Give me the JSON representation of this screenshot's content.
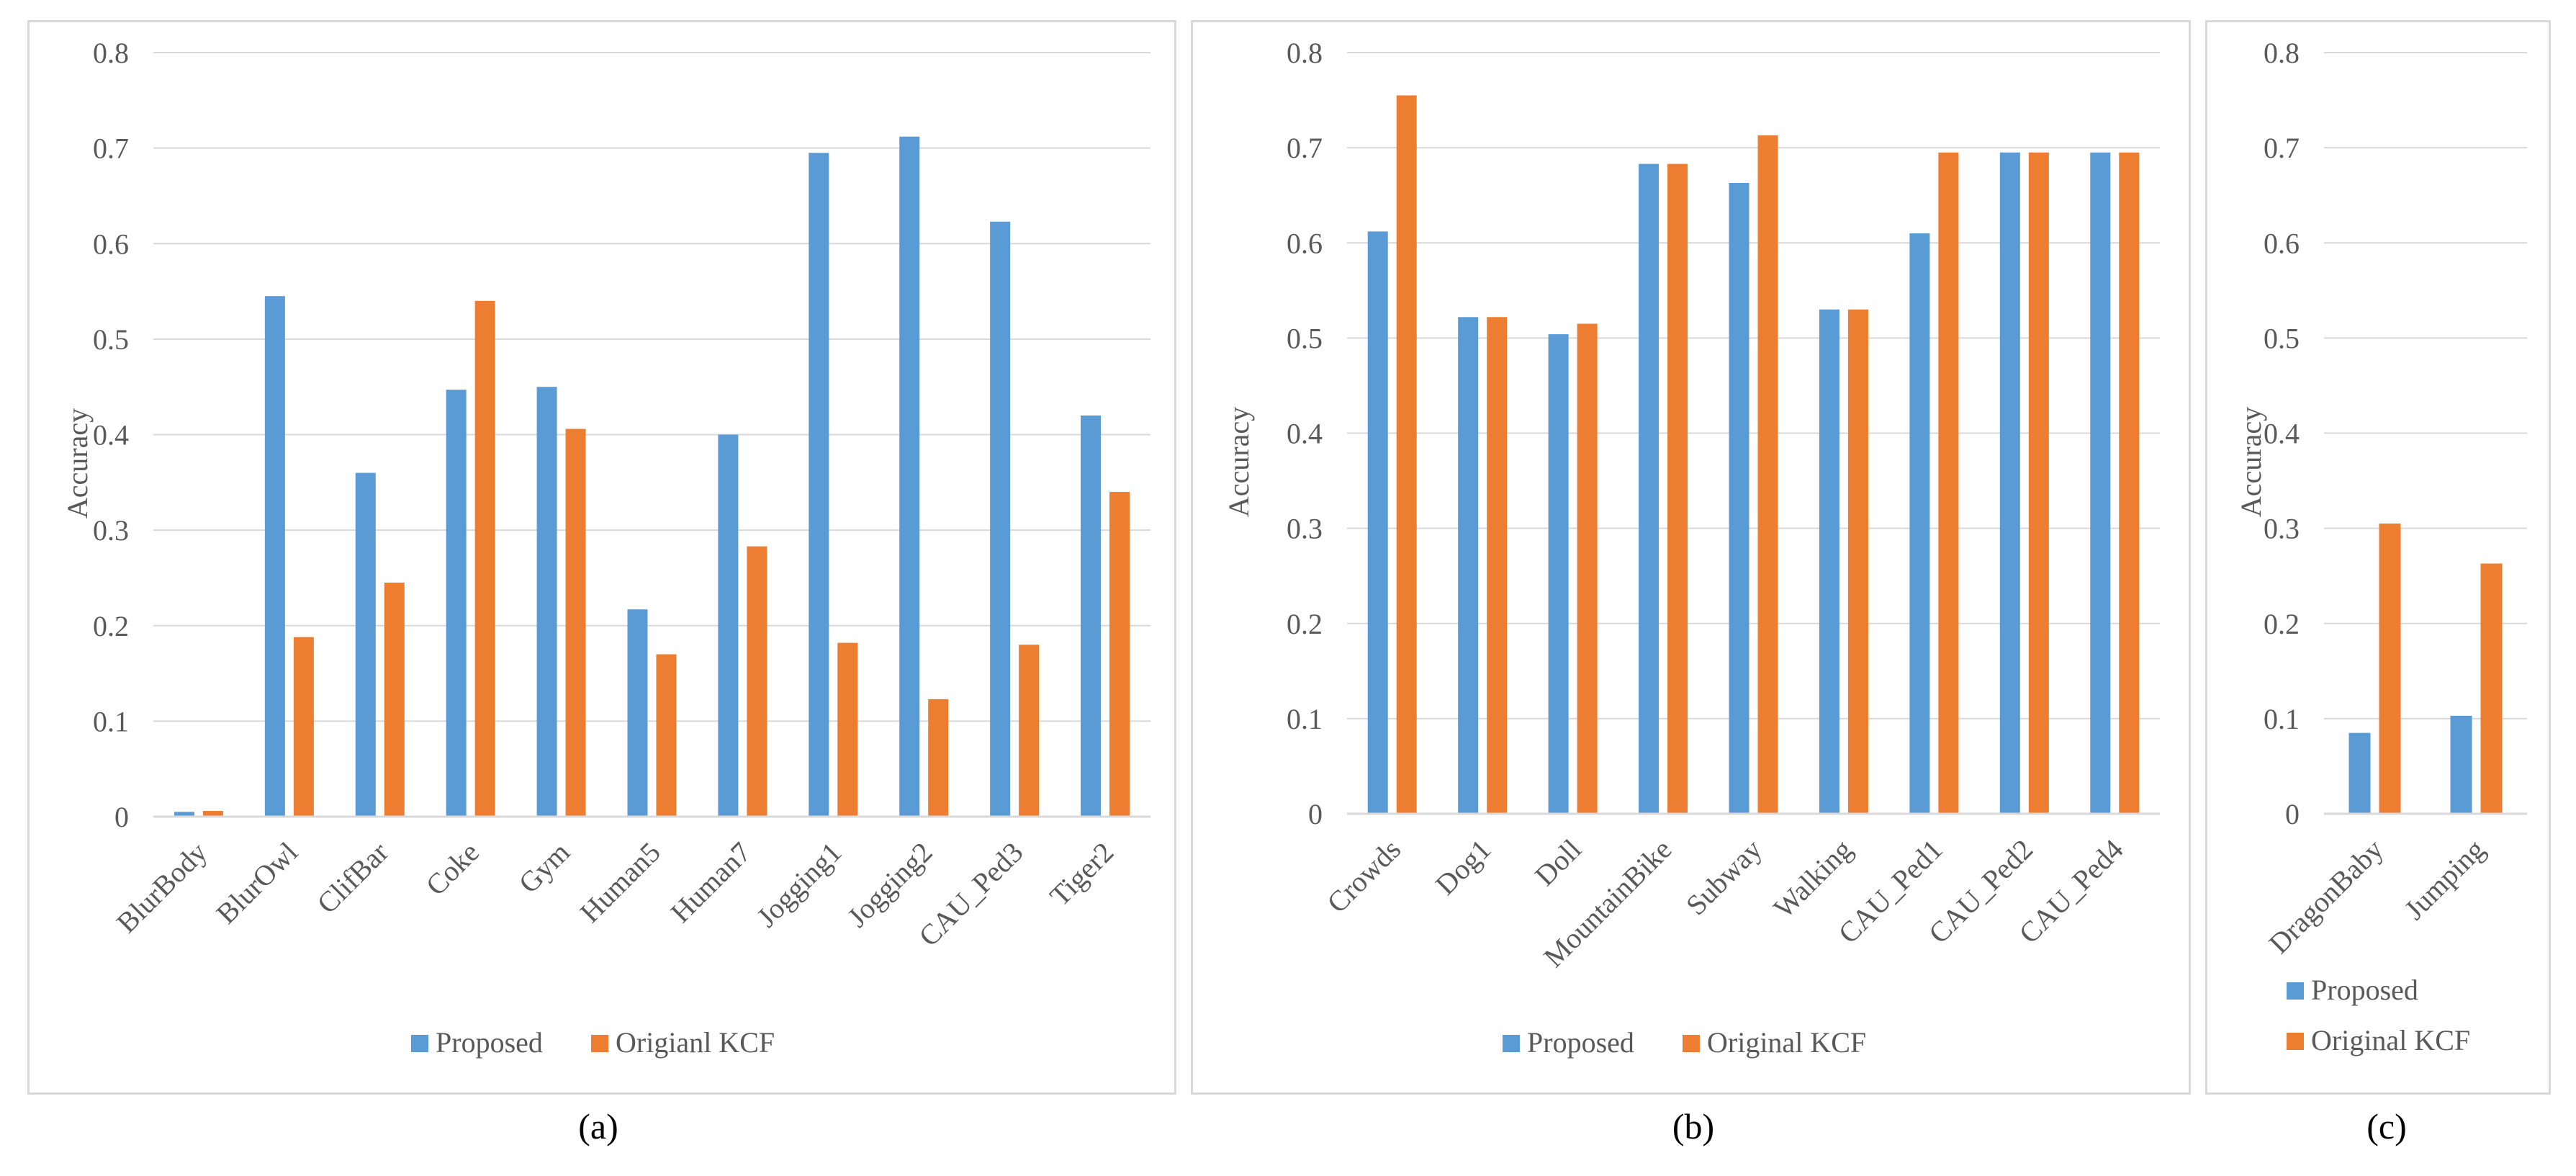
{
  "colors": {
    "proposed": "#5B9BD5",
    "original": "#ED7D31",
    "grid": "#d9d9d9",
    "text": "#595959",
    "border": "#d9d9d9"
  },
  "chart_data": [
    {
      "type": "bar",
      "title": "",
      "xlabel": "",
      "ylabel": "Accuracy",
      "ylim": [
        0,
        0.8
      ],
      "yticks": [
        "0",
        "0.1",
        "0.2",
        "0.3",
        "0.4",
        "0.5",
        "0.6",
        "0.7",
        "0.8"
      ],
      "grid": true,
      "legend_position": "bottom",
      "categories": [
        "BlurBody",
        "BlurOwl",
        "ClifBar",
        "Coke",
        "Gym",
        "Human5",
        "Human7",
        "Jogging1",
        "Jogging2",
        "CAU_Ped3",
        "Tiger2"
      ],
      "series": [
        {
          "name": "Proposed",
          "values": [
            0.005,
            0.545,
            0.36,
            0.447,
            0.45,
            0.217,
            0.4,
            0.695,
            0.712,
            0.623,
            0.42
          ]
        },
        {
          "name": "Origianl KCF",
          "values": [
            0.006,
            0.188,
            0.245,
            0.54,
            0.406,
            0.17,
            0.283,
            0.182,
            0.123,
            0.18,
            0.34
          ]
        }
      ],
      "caption": "(a)"
    },
    {
      "type": "bar",
      "title": "",
      "xlabel": "",
      "ylabel": "Accuracy",
      "ylim": [
        0,
        0.8
      ],
      "yticks": [
        "0",
        "0.1",
        "0.2",
        "0.3",
        "0.4",
        "0.5",
        "0.6",
        "0.7",
        "0.8"
      ],
      "grid": true,
      "legend_position": "bottom",
      "categories": [
        "Crowds",
        "Dog1",
        "Doll",
        "MountainBike",
        "Subway",
        "Walking",
        "CAU_Ped1",
        "CAU_Ped2",
        "CAU_Ped4"
      ],
      "series": [
        {
          "name": "Proposed",
          "values": [
            0.612,
            0.522,
            0.504,
            0.683,
            0.663,
            0.53,
            0.61,
            0.695,
            0.695
          ]
        },
        {
          "name": "Original KCF",
          "values": [
            0.755,
            0.522,
            0.515,
            0.683,
            0.713,
            0.53,
            0.695,
            0.695,
            0.695
          ]
        }
      ],
      "caption": "(b)"
    },
    {
      "type": "bar",
      "title": "",
      "xlabel": "",
      "ylabel": "Accuracy",
      "ylim": [
        0,
        0.8
      ],
      "yticks": [
        "0",
        "0.1",
        "0.2",
        "0.3",
        "0.4",
        "0.5",
        "0.6",
        "0.7",
        "0.8"
      ],
      "grid": true,
      "legend_position": "bottom",
      "legend_layout": "vertical",
      "categories": [
        "DragonBaby",
        "Jumping"
      ],
      "series": [
        {
          "name": "Proposed",
          "values": [
            0.085,
            0.103
          ]
        },
        {
          "name": "Original KCF",
          "values": [
            0.305,
            0.263
          ]
        }
      ],
      "caption": "(c)"
    }
  ]
}
